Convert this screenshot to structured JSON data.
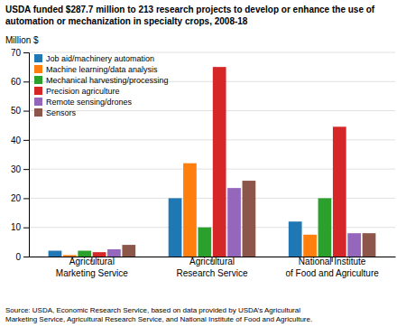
{
  "chart_data": {
    "type": "bar",
    "title": "USDA funded $287.7 million to 213 research projects to develop or enhance the use of\nautomation or mechanization in specialty crops, 2008-18",
    "ylabel": "Million $",
    "annotations": [
      "Source: USDA, Economic Research Service, based on data provided by USDA’s Agricultural\nMarketing Service, Agricultural Research Service, and National Institute of Food and Agriculture."
    ],
    "categories": [
      "Agricultural\nMarketing Service",
      "Agricultural\nResearch Service",
      "National Institute\nof Food and Agriculture"
    ],
    "series": [
      {
        "name": "Job aid/machinery automation",
        "values": [
          2.0,
          20.0,
          12.0
        ]
      },
      {
        "name": "Machine learning/data analysis",
        "values": [
          0.5,
          32.0,
          7.5
        ]
      },
      {
        "name": "Mechanical harvesting/processing",
        "values": [
          2.0,
          10.0,
          20.0
        ]
      },
      {
        "name": "Precision agriculture",
        "values": [
          1.5,
          65.0,
          44.5
        ]
      },
      {
        "name": "Remote sensing/drones",
        "values": [
          2.5,
          23.5,
          8.0
        ]
      },
      {
        "name": "Sensors",
        "values": [
          4.0,
          26.0,
          8.0
        ]
      }
    ],
    "ylim": [
      0,
      70
    ],
    "yticks": [
      0,
      10,
      20,
      30,
      40,
      50,
      60,
      70
    ],
    "grid": true,
    "legend": "upper left"
  }
}
